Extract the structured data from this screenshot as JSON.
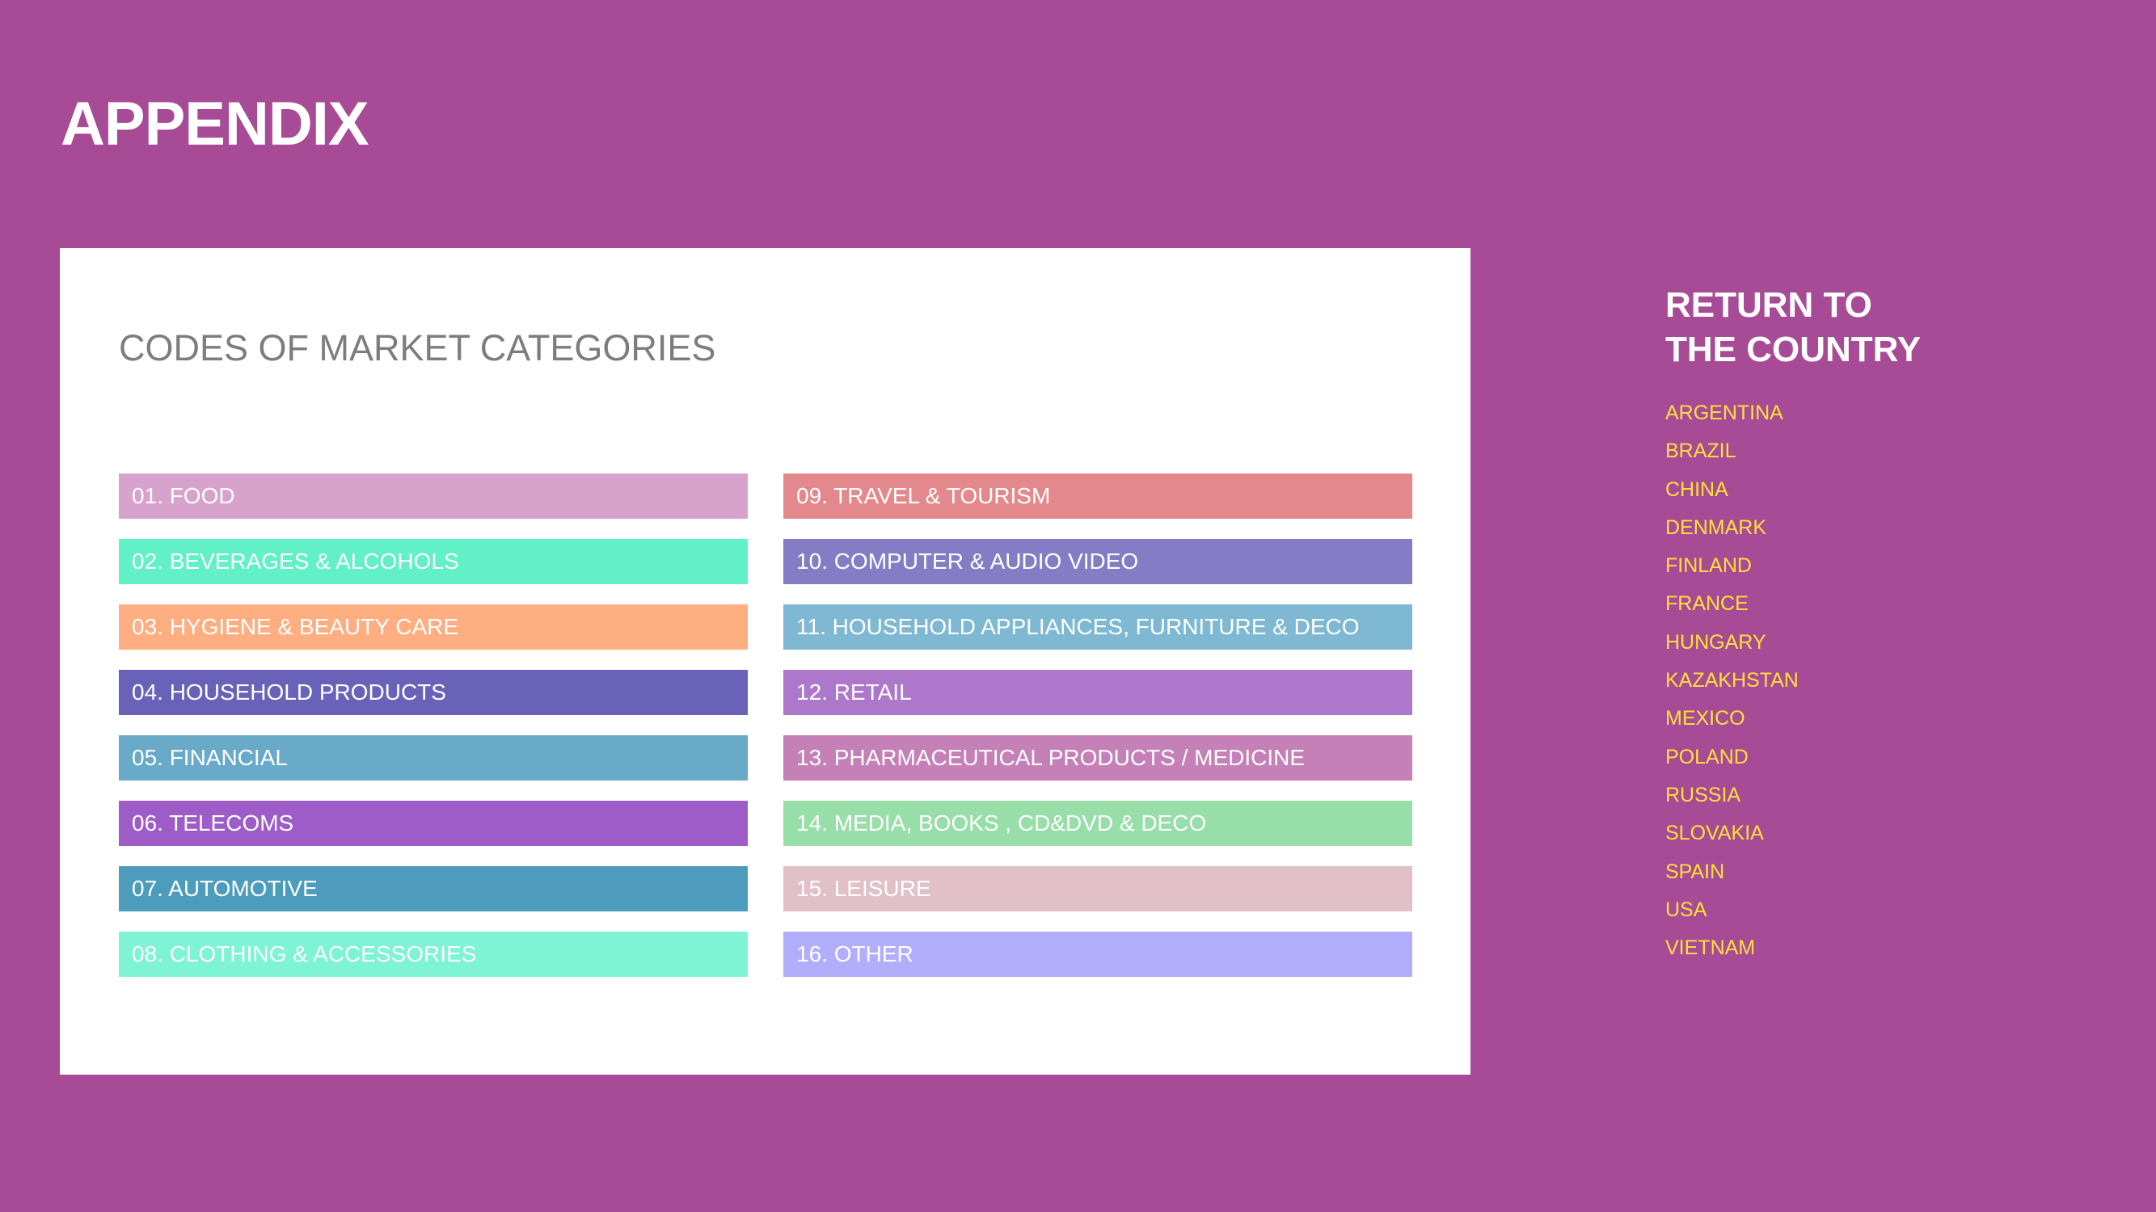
{
  "page": {
    "title": "APPENDIX",
    "background_color": "#a84b96"
  },
  "card": {
    "title": "CODES OF MARKET CATEGORIES",
    "left_column": [
      {
        "label": "01. FOOD",
        "color": "#d7a2cc"
      },
      {
        "label": "02. BEVERAGES & ALCOHOLS",
        "color": "#62f0c6"
      },
      {
        "label": "03. HYGIENE & BEAUTY CARE",
        "color": "#ffae82"
      },
      {
        "label": "04. HOUSEHOLD PRODUCTS",
        "color": "#6a62b8"
      },
      {
        "label": "05. FINANCIAL",
        "color": "#68aac8"
      },
      {
        "label": "06. TELECOMS",
        "color": "#9e5cc8"
      },
      {
        "label": "07. AUTOMOTIVE",
        "color": "#4e9cbd"
      },
      {
        "label": "08. CLOTHING & ACCESSORIES",
        "color": "#7ef4d4"
      }
    ],
    "right_column": [
      {
        "label": "09. TRAVEL & TOURISM",
        "color": "#e3898d"
      },
      {
        "label": "10. COMPUTER & AUDIO VIDEO",
        "color": "#847dc6"
      },
      {
        "label": "11. HOUSEHOLD APPLIANCES, FURNITURE & DECO",
        "color": "#7eb8d2"
      },
      {
        "label": "12. RETAIL",
        "color": "#ad78cc"
      },
      {
        "label": "13. PHARMACEUTICAL PRODUCTS / MEDICINE",
        "color": "#c680b8"
      },
      {
        "label": "14. MEDIA, BOOKS , CD&DVD & DECO",
        "color": "#98dea8"
      },
      {
        "label": "15. LEISURE",
        "color": "#e2c0c8"
      },
      {
        "label": "16. OTHER",
        "color": "#b2aefc"
      }
    ]
  },
  "return_nav": {
    "title_line1": "RETURN TO",
    "title_line2": "THE COUNTRY",
    "countries": [
      "ARGENTINA",
      "BRAZIL",
      "CHINA",
      "DENMARK",
      "FINLAND",
      "FRANCE",
      "HUNGARY",
      "KAZAKHSTAN",
      "MEXICO",
      "POLAND",
      "RUSSIA",
      "SLOVAKIA",
      "SPAIN",
      "USA",
      "VIETNAM"
    ]
  }
}
